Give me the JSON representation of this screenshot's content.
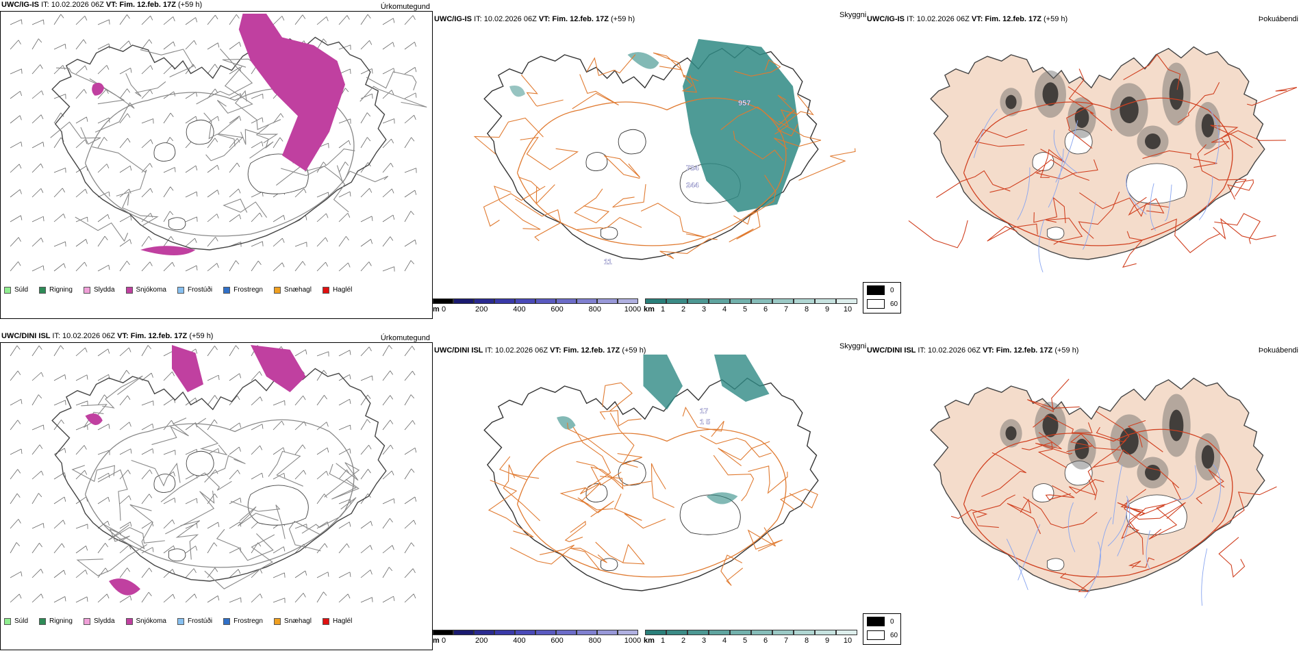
{
  "rows": [
    {
      "model": "UWC/IG-IS",
      "it_label": "IT:",
      "it_value": "10.02.2026 06Z",
      "vt_label": "VT:",
      "vt_value": "Fim. 12.feb. 17Z",
      "lead": "(+59 h)",
      "precip_field": "Úrkomutegund",
      "vis_field": "Skyggni",
      "fog_field": "Þokuábendi",
      "value_labels": [
        "957",
        "734",
        "244",
        "11"
      ]
    },
    {
      "model": "UWC/DINI ISL",
      "it_label": "IT:",
      "it_value": "10.02.2026 06Z",
      "vt_label": "VT:",
      "vt_value": "Fim. 12.feb. 17Z",
      "lead": "(+59 h)",
      "precip_field": "Úrkomutegund",
      "vis_field": "Skyggni",
      "fog_field": "Þokuábendi",
      "value_labels": [
        "17",
        "1 5"
      ]
    }
  ],
  "precip_legend": [
    {
      "label": "Súld",
      "color": "#90ee90"
    },
    {
      "label": "Rigning",
      "color": "#2e8b57"
    },
    {
      "label": "Slydda",
      "color": "#f0a0d8"
    },
    {
      "label": "Snjókoma",
      "color": "#c040a0"
    },
    {
      "label": "Frostúði",
      "color": "#87c0f0"
    },
    {
      "label": "Frostregn",
      "color": "#3070c8"
    },
    {
      "label": "Snæhagl",
      "color": "#f0a020"
    },
    {
      "label": "Haglél",
      "color": "#e01010"
    }
  ],
  "height_bar": {
    "unit": "m",
    "ticks": [
      "0",
      "200",
      "400",
      "600",
      "800",
      "1000"
    ],
    "colors": [
      "#000000",
      "#1a1a70",
      "#2a2a90",
      "#3a3aa8",
      "#4a4ab8",
      "#5a5ac0",
      "#6c6cc8",
      "#8080d0",
      "#9898d8",
      "#b0b0e0"
    ]
  },
  "vis_bar": {
    "unit": "km",
    "ticks": [
      "1",
      "2",
      "3",
      "4",
      "5",
      "6",
      "7",
      "8",
      "9",
      "10"
    ],
    "colors": [
      "#2a7f7a",
      "#3b8b86",
      "#4d9893",
      "#5fa49f",
      "#72b1ac",
      "#86bdb9",
      "#9bc9c5",
      "#b0d6d2",
      "#c6e2df",
      "#ddeeec"
    ]
  },
  "fog_legend": [
    {
      "label": "0",
      "color": "#000000"
    },
    {
      "label": "60",
      "color": "#ffffff"
    }
  ],
  "colors": {
    "snow": "#c040a0",
    "vis": "#2f8a84",
    "roads": "#e07a30",
    "land": "#f4dccb",
    "rivers": "#8aa6f0",
    "coast": "#333333"
  }
}
